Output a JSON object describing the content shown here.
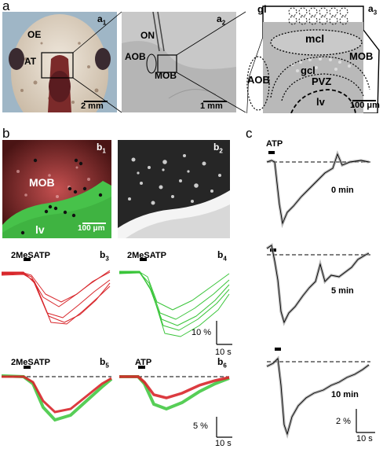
{
  "panels": {
    "a": "a",
    "b": "b",
    "c": "c"
  },
  "a1": {
    "label": "a",
    "idx": "1",
    "oe": "OE",
    "at": "AT",
    "scale": "2 mm"
  },
  "a2": {
    "label": "a",
    "idx": "2",
    "on": "ON",
    "aob": "AOB",
    "mob": "MOB",
    "scale": "1 mm"
  },
  "a3": {
    "label": "a",
    "idx": "3",
    "gl": "gl",
    "mcl": "mcl",
    "mob": "MOB",
    "aob": "AOB",
    "gcl": "gcl",
    "pvz": "PVZ",
    "lv": "lv",
    "scale": "100 μm"
  },
  "b1": {
    "label": "b",
    "idx": "1",
    "mob": "MOB",
    "lv": "lv",
    "scale": "100 μm"
  },
  "b2": {
    "label": "b",
    "idx": "2"
  },
  "b3": {
    "label": "b",
    "idx": "3",
    "stim": "2MeSATP"
  },
  "b4": {
    "label": "b",
    "idx": "4",
    "stim": "2MeSATP",
    "yscale": "10 %",
    "xscale": "10 s"
  },
  "b5": {
    "label": "b",
    "idx": "5",
    "stim": "2MeSATP"
  },
  "b6": {
    "label": "b",
    "idx": "6",
    "stim": "ATP",
    "yscale": "5 %",
    "xscale": "10 s"
  },
  "c": {
    "stim": "ATP",
    "t0": "0 min",
    "t5": "5 min",
    "t10": "10 min",
    "yscale": "2 %",
    "xscale": "10 s"
  },
  "colors": {
    "red": "#d8262b",
    "green": "#3ac53a",
    "gray": "#9a9a9a"
  }
}
